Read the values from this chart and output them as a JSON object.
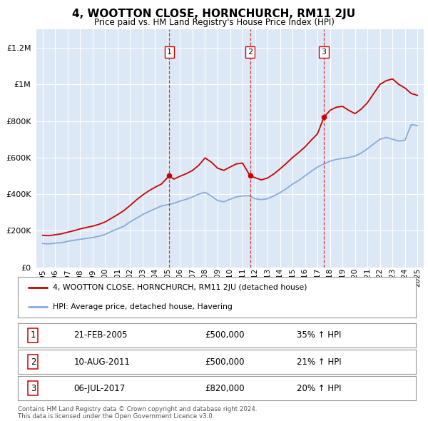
{
  "title": "4, WOOTTON CLOSE, HORNCHURCH, RM11 2JU",
  "subtitle": "Price paid vs. HM Land Registry's House Price Index (HPI)",
  "background_color": "#f5f5f5",
  "plot_bg_color": "#dce8f5",
  "legend_line1": "4, WOOTTON CLOSE, HORNCHURCH, RM11 2JU (detached house)",
  "legend_line2": "HPI: Average price, detached house, Havering",
  "footer": "Contains HM Land Registry data © Crown copyright and database right 2024.\nThis data is licensed under the Open Government Licence v3.0.",
  "red_line_color": "#cc0000",
  "blue_line_color": "#88aadd",
  "ytick_values": [
    0,
    200000,
    400000,
    600000,
    800000,
    1000000,
    1200000
  ],
  "ylim": [
    0,
    1300000
  ],
  "table_rows": [
    [
      "1",
      "21-FEB-2005",
      "£500,000",
      "35% ↑ HPI"
    ],
    [
      "2",
      "10-AUG-2011",
      "£500,000",
      "21% ↑ HPI"
    ],
    [
      "3",
      "06-JUL-2017",
      "£820,000",
      "20% ↑ HPI"
    ]
  ],
  "sale_events": [
    {
      "year": 2005.13,
      "price": 500000,
      "label": "1"
    },
    {
      "year": 2011.6,
      "price": 500000,
      "label": "2"
    },
    {
      "year": 2017.51,
      "price": 820000,
      "label": "3"
    }
  ],
  "hpi_data": [
    [
      1995.0,
      130000
    ],
    [
      1995.5,
      128000
    ],
    [
      1996.0,
      132000
    ],
    [
      1996.5,
      135000
    ],
    [
      1997.0,
      142000
    ],
    [
      1997.5,
      148000
    ],
    [
      1998.0,
      153000
    ],
    [
      1998.5,
      158000
    ],
    [
      1999.0,
      163000
    ],
    [
      1999.5,
      170000
    ],
    [
      2000.0,
      180000
    ],
    [
      2000.5,
      196000
    ],
    [
      2001.0,
      210000
    ],
    [
      2001.5,
      225000
    ],
    [
      2002.0,
      248000
    ],
    [
      2002.5,
      268000
    ],
    [
      2003.0,
      288000
    ],
    [
      2003.5,
      305000
    ],
    [
      2004.0,
      320000
    ],
    [
      2004.5,
      335000
    ],
    [
      2005.0,
      342000
    ],
    [
      2005.5,
      350000
    ],
    [
      2006.0,
      362000
    ],
    [
      2006.5,
      372000
    ],
    [
      2007.0,
      385000
    ],
    [
      2007.5,
      400000
    ],
    [
      2008.0,
      410000
    ],
    [
      2008.5,
      390000
    ],
    [
      2009.0,
      365000
    ],
    [
      2009.5,
      358000
    ],
    [
      2010.0,
      372000
    ],
    [
      2010.5,
      385000
    ],
    [
      2011.0,
      390000
    ],
    [
      2011.5,
      392000
    ],
    [
      2012.0,
      375000
    ],
    [
      2012.5,
      370000
    ],
    [
      2013.0,
      375000
    ],
    [
      2013.5,
      390000
    ],
    [
      2014.0,
      408000
    ],
    [
      2014.5,
      430000
    ],
    [
      2015.0,
      455000
    ],
    [
      2015.5,
      475000
    ],
    [
      2016.0,
      500000
    ],
    [
      2016.5,
      525000
    ],
    [
      2017.0,
      548000
    ],
    [
      2017.5,
      565000
    ],
    [
      2018.0,
      580000
    ],
    [
      2018.5,
      590000
    ],
    [
      2019.0,
      595000
    ],
    [
      2019.5,
      600000
    ],
    [
      2020.0,
      608000
    ],
    [
      2020.5,
      625000
    ],
    [
      2021.0,
      648000
    ],
    [
      2021.5,
      675000
    ],
    [
      2022.0,
      700000
    ],
    [
      2022.5,
      710000
    ],
    [
      2023.0,
      700000
    ],
    [
      2023.5,
      690000
    ],
    [
      2024.0,
      695000
    ],
    [
      2024.5,
      780000
    ],
    [
      2025.0,
      775000
    ]
  ],
  "red_data": [
    [
      1995.0,
      175000
    ],
    [
      1995.5,
      173000
    ],
    [
      1996.0,
      178000
    ],
    [
      1996.5,
      183000
    ],
    [
      1997.0,
      192000
    ],
    [
      1997.5,
      200000
    ],
    [
      1998.0,
      210000
    ],
    [
      1998.5,
      218000
    ],
    [
      1999.0,
      225000
    ],
    [
      1999.5,
      235000
    ],
    [
      2000.0,
      248000
    ],
    [
      2000.5,
      268000
    ],
    [
      2001.0,
      288000
    ],
    [
      2001.5,
      310000
    ],
    [
      2002.0,
      338000
    ],
    [
      2002.5,
      368000
    ],
    [
      2003.0,
      395000
    ],
    [
      2003.5,
      418000
    ],
    [
      2004.0,
      438000
    ],
    [
      2004.5,
      455000
    ],
    [
      2005.13,
      500000
    ],
    [
      2005.5,
      482000
    ],
    [
      2006.0,
      498000
    ],
    [
      2006.5,
      512000
    ],
    [
      2007.0,
      530000
    ],
    [
      2007.5,
      558000
    ],
    [
      2008.0,
      598000
    ],
    [
      2008.5,
      575000
    ],
    [
      2009.0,
      542000
    ],
    [
      2009.5,
      530000
    ],
    [
      2010.0,
      548000
    ],
    [
      2010.5,
      565000
    ],
    [
      2011.0,
      570000
    ],
    [
      2011.6,
      500000
    ],
    [
      2012.0,
      490000
    ],
    [
      2012.5,
      478000
    ],
    [
      2013.0,
      488000
    ],
    [
      2013.5,
      510000
    ],
    [
      2014.0,
      538000
    ],
    [
      2014.5,
      568000
    ],
    [
      2015.0,
      600000
    ],
    [
      2015.5,
      628000
    ],
    [
      2016.0,
      658000
    ],
    [
      2016.5,
      695000
    ],
    [
      2017.0,
      730000
    ],
    [
      2017.51,
      820000
    ],
    [
      2018.0,
      858000
    ],
    [
      2018.5,
      875000
    ],
    [
      2019.0,
      880000
    ],
    [
      2019.5,
      858000
    ],
    [
      2020.0,
      840000
    ],
    [
      2020.5,
      865000
    ],
    [
      2021.0,
      900000
    ],
    [
      2021.5,
      950000
    ],
    [
      2022.0,
      1000000
    ],
    [
      2022.5,
      1020000
    ],
    [
      2023.0,
      1030000
    ],
    [
      2023.5,
      1000000
    ],
    [
      2024.0,
      980000
    ],
    [
      2024.5,
      950000
    ],
    [
      2025.0,
      940000
    ]
  ]
}
